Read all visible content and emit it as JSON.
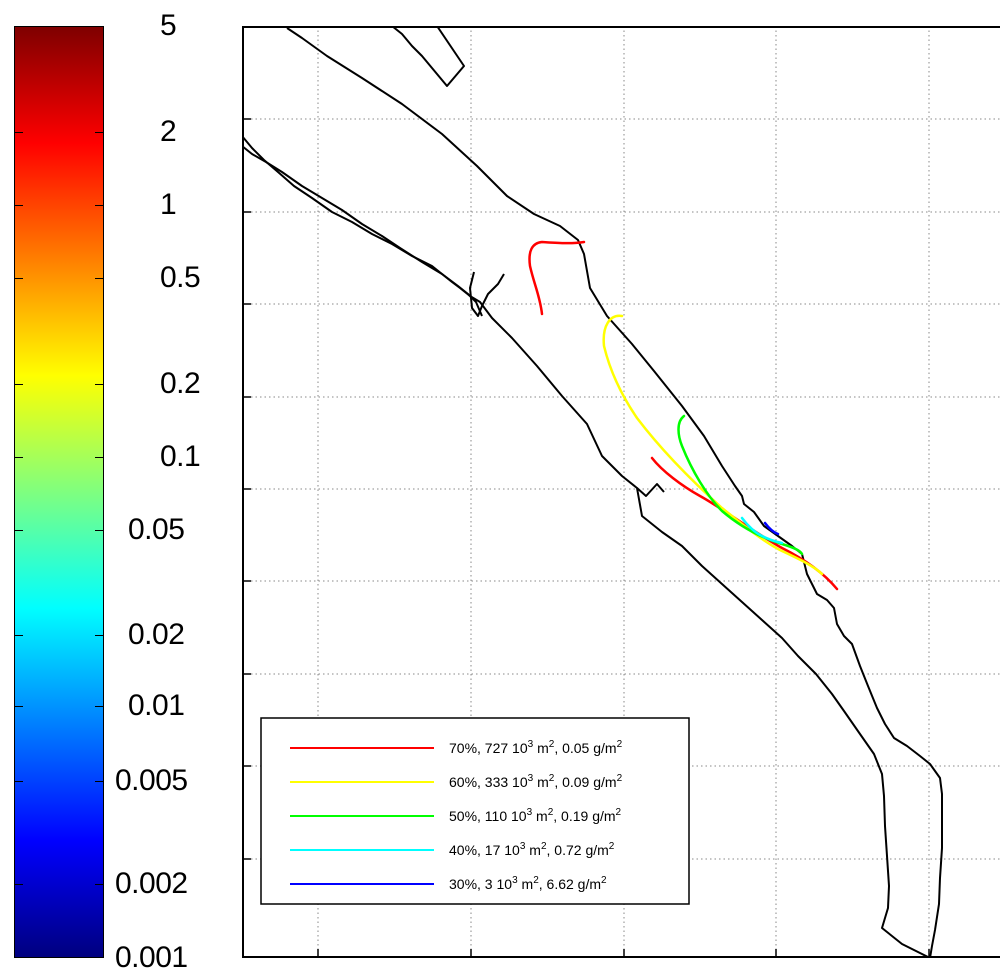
{
  "colorbar": {
    "labels": [
      "5",
      "2",
      "1",
      "0.5",
      "0.2",
      "0.1",
      "0.05",
      "0.02",
      "0.01",
      "0.005",
      "0.002",
      "0.001"
    ],
    "colors": [
      "#00007f",
      "#0000ff",
      "#007fff",
      "#00ffff",
      "#7fff7f",
      "#ffff00",
      "#ff7f00",
      "#ff0000",
      "#7f0000"
    ]
  },
  "legend": [
    {
      "pct": "70%, 727 10",
      "sup": "3",
      "mid": " m",
      "sup2": "2",
      "tail": ", 0.05 g/m",
      "sup3": "2",
      "color": "#ff0000"
    },
    {
      "pct": "60%, 333 10",
      "sup": "3",
      "mid": " m",
      "sup2": "2",
      "tail": ", 0.09 g/m",
      "sup3": "2",
      "color": "#ffff00"
    },
    {
      "pct": "50%, 110 10",
      "sup": "3",
      "mid": " m",
      "sup2": "2",
      "tail": ", 0.19 g/m",
      "sup3": "2",
      "color": "#00ff00"
    },
    {
      "pct": "40%, 17 10",
      "sup": "3",
      "mid": " m",
      "sup2": "2",
      "tail": ", 0.72 g/m",
      "sup3": "2",
      "color": "#00ffff"
    },
    {
      "pct": "30%, 3 10",
      "sup": "3",
      "mid": " m",
      "sup2": "2",
      "tail": ", 6.62 g/m",
      "sup3": "2",
      "color": "#0000ff"
    }
  ]
}
